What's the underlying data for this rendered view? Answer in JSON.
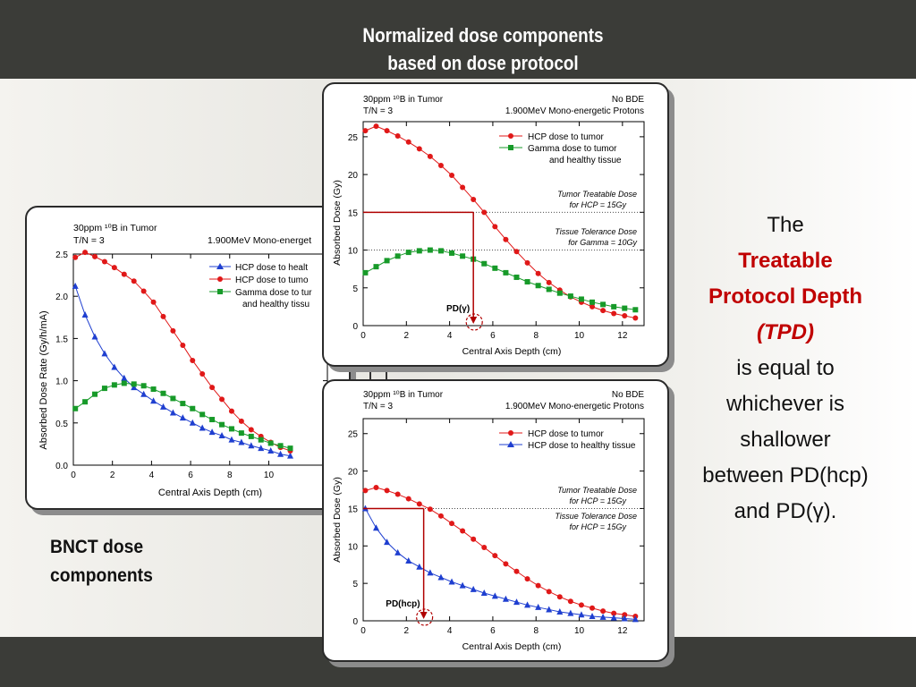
{
  "slide": {
    "title_line1": "Normalized dose components",
    "title_line2": "based on dose protocol",
    "caption_line1": "BNCT dose",
    "caption_line2": "components",
    "side_the": "The",
    "side_tpd1": "Treatable",
    "side_tpd2": "Protocol Depth",
    "side_tpd3": "(TPD)",
    "side_l1": "is equal to",
    "side_l2": "whichever is",
    "side_l3": "shallower",
    "side_l4": "between PD(hcp)",
    "side_l5": "and PD(γ).",
    "accent_color": "#c00000"
  },
  "chart_data": [
    {
      "type": "line",
      "header_left_1": "30ppm ¹⁰B in Tumor",
      "header_left_2": "T/N = 3",
      "header_right_1": "",
      "header_right_2": "1.900MeV Mono-energet",
      "xlabel": "Central Axis Depth (cm)",
      "ylabel": "Absorbed Dose Rate (Gy/h/mA)",
      "xlim": [
        0,
        13
      ],
      "ylim": [
        0,
        2.5
      ],
      "xticks": [
        "0",
        "2",
        "4",
        "6",
        "8",
        "10"
      ],
      "yticks": [
        "0.0",
        "0.5",
        "1.0",
        "1.5",
        "2.0",
        "2.5"
      ],
      "x": [
        0.1,
        0.6,
        1.1,
        1.6,
        2.1,
        2.6,
        3.1,
        3.6,
        4.1,
        4.6,
        5.1,
        5.6,
        6.1,
        6.6,
        7.1,
        7.6,
        8.1,
        8.6,
        9.1,
        9.6,
        10.1,
        10.6,
        11.1
      ],
      "series": [
        {
          "name": "HCP dose to healt",
          "color": "#1f3fd0",
          "marker": "triangle",
          "values": [
            2.12,
            1.78,
            1.52,
            1.32,
            1.16,
            1.03,
            0.92,
            0.84,
            0.76,
            0.69,
            0.62,
            0.56,
            0.5,
            0.44,
            0.39,
            0.35,
            0.3,
            0.27,
            0.23,
            0.2,
            0.17,
            0.13,
            0.11
          ]
        },
        {
          "name": "HCP dose to tumo",
          "color": "#e01818",
          "marker": "circle",
          "values": [
            2.46,
            2.52,
            2.47,
            2.41,
            2.34,
            2.26,
            2.18,
            2.06,
            1.93,
            1.76,
            1.59,
            1.42,
            1.24,
            1.08,
            0.92,
            0.78,
            0.64,
            0.52,
            0.42,
            0.34,
            0.27,
            0.21,
            0.17
          ]
        },
        {
          "name": "Gamma dose to tur",
          "name_line2": "and healthy tissu",
          "color": "#179a29",
          "marker": "square",
          "values": [
            0.67,
            0.75,
            0.84,
            0.91,
            0.95,
            0.97,
            0.96,
            0.94,
            0.9,
            0.85,
            0.79,
            0.73,
            0.67,
            0.6,
            0.54,
            0.48,
            0.43,
            0.38,
            0.34,
            0.3,
            0.26,
            0.23,
            0.2
          ]
        }
      ]
    },
    {
      "type": "line",
      "header_left_1": "30ppm ¹⁰B in Tumor",
      "header_left_2": "T/N = 3",
      "header_right_1": "No BDE",
      "header_right_2": "1.900MeV Mono-energetic Protons",
      "xlabel": "Central Axis Depth (cm)",
      "ylabel": "Absorbed Dose (Gy)",
      "xlim": [
        0,
        13
      ],
      "ylim": [
        0,
        27
      ],
      "xticks": [
        "0",
        "2",
        "4",
        "6",
        "8",
        "10",
        "12"
      ],
      "yticks": [
        "0",
        "5",
        "10",
        "15",
        "20",
        "25"
      ],
      "x": [
        0.1,
        0.6,
        1.1,
        1.6,
        2.1,
        2.6,
        3.1,
        3.6,
        4.1,
        4.6,
        5.1,
        5.6,
        6.1,
        6.6,
        7.1,
        7.6,
        8.1,
        8.6,
        9.1,
        9.6,
        10.1,
        10.6,
        11.1,
        11.6,
        12.1,
        12.6
      ],
      "series": [
        {
          "name": "HCP dose to tumor",
          "color": "#e01818",
          "marker": "circle",
          "values": [
            25.8,
            26.4,
            25.8,
            25.1,
            24.3,
            23.4,
            22.4,
            21.2,
            19.9,
            18.3,
            16.7,
            15.0,
            13.1,
            11.4,
            9.8,
            8.3,
            6.9,
            5.7,
            4.7,
            3.8,
            3.1,
            2.5,
            2.0,
            1.6,
            1.3,
            1.0
          ]
        },
        {
          "name": "Gamma dose to tumor",
          "name_line2": "and healthy tissue",
          "color": "#179a29",
          "marker": "square",
          "values": [
            7.0,
            7.8,
            8.6,
            9.2,
            9.7,
            9.9,
            10.0,
            9.9,
            9.6,
            9.2,
            8.8,
            8.2,
            7.6,
            7.0,
            6.4,
            5.8,
            5.3,
            4.8,
            4.3,
            3.9,
            3.5,
            3.1,
            2.8,
            2.5,
            2.3,
            2.1
          ]
        }
      ],
      "annotations": [
        {
          "text_1": "Tumor Treatable Dose",
          "text_2": "for HCP = 15Gy",
          "y": 15
        },
        {
          "text_1": "Tissue Tolerance Dose",
          "text_2": "for Gamma = 10Gy",
          "y": 10
        }
      ],
      "pd_label": "PD(γ)",
      "pd_x": 5.1
    },
    {
      "type": "line",
      "header_left_1": "30ppm ¹⁰B in Tumor",
      "header_left_2": "T/N = 3",
      "header_right_1": "No BDE",
      "header_right_2": "1.900MeV Mono-energetic Protons",
      "xlabel": "Central Axis Depth (cm)",
      "ylabel": "Absorbed Dose (Gy)",
      "xlim": [
        0,
        13
      ],
      "ylim": [
        0,
        27
      ],
      "xticks": [
        "0",
        "2",
        "4",
        "6",
        "8",
        "10",
        "12"
      ],
      "yticks": [
        "0",
        "5",
        "10",
        "15",
        "20",
        "25"
      ],
      "x": [
        0.1,
        0.6,
        1.1,
        1.6,
        2.1,
        2.6,
        3.1,
        3.6,
        4.1,
        4.6,
        5.1,
        5.6,
        6.1,
        6.6,
        7.1,
        7.6,
        8.1,
        8.6,
        9.1,
        9.6,
        10.1,
        10.6,
        11.1,
        11.6,
        12.1,
        12.6
      ],
      "series": [
        {
          "name": "HCP dose to tumor",
          "color": "#e01818",
          "marker": "circle",
          "values": [
            17.4,
            17.8,
            17.4,
            16.9,
            16.3,
            15.6,
            14.9,
            14.0,
            13.0,
            12.0,
            10.9,
            9.8,
            8.7,
            7.6,
            6.6,
            5.6,
            4.7,
            3.9,
            3.2,
            2.6,
            2.1,
            1.7,
            1.3,
            1.0,
            0.8,
            0.6
          ]
        },
        {
          "name": "HCP dose to healthy tissue",
          "color": "#1f3fd0",
          "marker": "triangle",
          "values": [
            15.0,
            12.4,
            10.5,
            9.1,
            8.0,
            7.2,
            6.4,
            5.8,
            5.2,
            4.7,
            4.2,
            3.7,
            3.3,
            2.9,
            2.5,
            2.1,
            1.8,
            1.5,
            1.2,
            1.0,
            0.8,
            0.6,
            0.5,
            0.4,
            0.3,
            0.2
          ]
        }
      ],
      "annotations": [
        {
          "text_1": "Tumor Treatable Dose",
          "text_2": "for HCP = 15Gy",
          "y": 15
        },
        {
          "text_1": "Tissue Tolerance Dose",
          "text_2": "for HCP = 15Gy",
          "y": 15
        }
      ],
      "pd_label": "PD(hcp)",
      "pd_x": 2.8
    }
  ]
}
